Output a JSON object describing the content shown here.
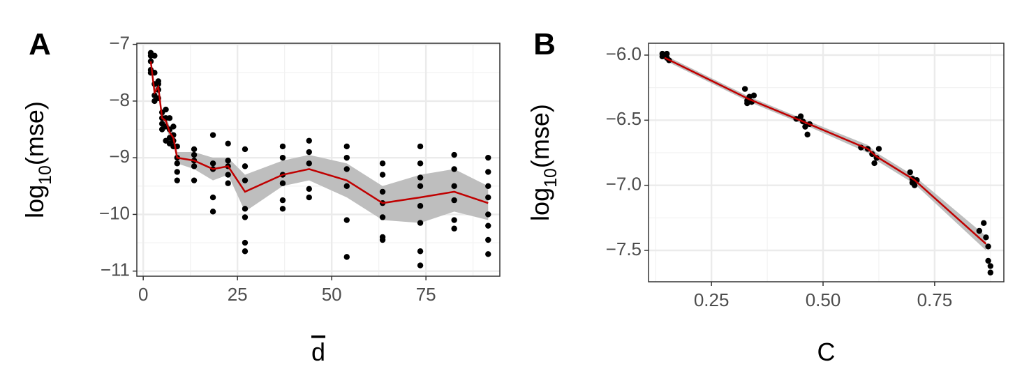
{
  "chart_data": [
    {
      "type": "scatter",
      "panel_label": "A",
      "xlabel": "d",
      "ylabel_parts": [
        "log",
        "10",
        "(mse)"
      ],
      "xlim": [
        -1.7,
        94.6
      ],
      "ylim": [
        -11.09,
        -6.98
      ],
      "xticks": [
        0,
        25,
        50,
        75
      ],
      "yticks": [
        {
          "value": -7,
          "label": "−7"
        },
        {
          "value": -8,
          "label": "−8"
        },
        {
          "value": -9,
          "label": "−9"
        },
        {
          "value": -10,
          "label": "−10"
        },
        {
          "value": -11,
          "label": "−11"
        }
      ],
      "grid": true,
      "point_color": "#000000",
      "line_color": "#c00000",
      "ribbon_color": "#bebebe",
      "points": {
        "x": [
          2,
          2,
          2,
          2,
          2,
          3,
          3,
          3,
          3,
          3,
          4,
          4,
          4,
          4,
          5,
          5,
          5,
          5,
          6,
          6,
          6,
          6,
          7,
          7,
          7,
          7,
          8,
          8,
          8,
          8,
          9,
          9,
          9,
          9,
          9,
          13.5,
          13.5,
          13.5,
          13.5,
          13.5,
          18.5,
          18.5,
          18.5,
          18.5,
          18.5,
          22.5,
          22.5,
          22.5,
          22.5,
          22.5,
          27,
          27,
          27,
          27,
          27,
          27,
          27,
          37,
          37,
          37,
          37,
          37,
          37,
          44,
          44,
          44,
          44,
          44,
          54,
          54,
          54,
          54,
          54,
          54,
          63.5,
          63.5,
          63.5,
          63.5,
          63.5,
          63.5,
          63.5,
          73.5,
          73.5,
          73.5,
          73.5,
          73.5,
          73.5,
          73.5,
          73.5,
          82.5,
          82.5,
          82.5,
          82.5,
          82.5,
          82.5,
          91.5,
          91.5,
          91.5,
          91.5,
          91.5,
          91.5,
          91.5,
          91.5
        ],
        "y": [
          -7.15,
          -7.2,
          -7.3,
          -7.45,
          -7.5,
          -7.2,
          -7.5,
          -7.7,
          -7.9,
          -8.0,
          -7.65,
          -7.7,
          -7.8,
          -7.95,
          -8.2,
          -8.3,
          -8.4,
          -8.5,
          -8.15,
          -8.3,
          -8.45,
          -8.7,
          -8.3,
          -8.5,
          -8.65,
          -8.75,
          -8.45,
          -8.6,
          -8.7,
          -8.8,
          -8.8,
          -9.0,
          -9.1,
          -9.25,
          -9.4,
          -8.85,
          -8.95,
          -9.05,
          -9.15,
          -9.4,
          -8.6,
          -9.1,
          -9.2,
          -9.7,
          -9.95,
          -8.75,
          -9.05,
          -9.15,
          -9.3,
          -9.45,
          -8.85,
          -9.15,
          -9.4,
          -9.9,
          -10.05,
          -10.5,
          -10.65,
          -8.8,
          -9.0,
          -9.3,
          -9.45,
          -9.75,
          -9.9,
          -8.7,
          -8.9,
          -9.1,
          -9.55,
          -9.7,
          -8.8,
          -9.0,
          -9.2,
          -9.5,
          -10.1,
          -10.75,
          -9.1,
          -9.3,
          -9.6,
          -9.8,
          -10.05,
          -10.4,
          -10.45,
          -8.8,
          -9.1,
          -9.35,
          -9.5,
          -9.85,
          -10.15,
          -10.65,
          -10.9,
          -8.95,
          -9.2,
          -9.5,
          -9.75,
          -10.1,
          -10.25,
          -9.0,
          -9.25,
          -9.5,
          -9.7,
          -10.0,
          -10.2,
          -10.45,
          -10.7
        ]
      },
      "line": {
        "x": [
          2,
          3,
          4,
          5,
          6,
          7,
          8,
          9,
          13.5,
          18.5,
          22.5,
          27,
          37,
          44,
          54,
          63.5,
          73.5,
          82.5,
          91.5
        ],
        "y": [
          -7.3,
          -7.85,
          -7.75,
          -8.3,
          -8.35,
          -8.55,
          -8.65,
          -9.0,
          -9.05,
          -9.2,
          -9.15,
          -9.6,
          -9.3,
          -9.2,
          -9.4,
          -9.8,
          -9.7,
          -9.6,
          -9.8
        ],
        "lower": [
          -7.4,
          -7.95,
          -7.85,
          -8.38,
          -8.45,
          -8.65,
          -8.75,
          -9.1,
          -9.2,
          -9.4,
          -9.3,
          -9.95,
          -9.5,
          -9.4,
          -9.7,
          -10.1,
          -10.15,
          -9.95,
          -10.1
        ],
        "upper": [
          -7.2,
          -7.75,
          -7.65,
          -8.22,
          -8.25,
          -8.45,
          -8.55,
          -8.9,
          -8.9,
          -9.0,
          -9.0,
          -9.3,
          -9.05,
          -8.95,
          -9.1,
          -9.5,
          -9.3,
          -9.2,
          -9.5
        ]
      }
    },
    {
      "type": "scatter",
      "panel_label": "B",
      "xlabel": "C",
      "ylabel_parts": [
        "log",
        "10",
        "(mse)"
      ],
      "xlim": [
        0.109,
        0.905
      ],
      "ylim": [
        -7.741,
        -5.909
      ],
      "xticks": [
        0.25,
        {
          "value": 0.5,
          "label": "0.50"
        },
        0.75
      ],
      "yticks": [
        {
          "value": -6,
          "label": "−6.0"
        },
        {
          "value": -6.5,
          "label": "−6.5"
        },
        {
          "value": -7,
          "label": "−7.0"
        },
        {
          "value": -7.5,
          "label": "−7.5"
        }
      ],
      "grid": true,
      "point_color": "#000000",
      "line_color": "#c00000",
      "ribbon_color": "#bebebe",
      "points": {
        "x": [
          0.14,
          0.145,
          0.15,
          0.155,
          0.14,
          0.15,
          0.325,
          0.33,
          0.335,
          0.34,
          0.345,
          0.33,
          0.44,
          0.45,
          0.455,
          0.46,
          0.465,
          0.47,
          0.585,
          0.6,
          0.61,
          0.62,
          0.625,
          0.615,
          0.695,
          0.7,
          0.705,
          0.71,
          0.7,
          0.85,
          0.86,
          0.865,
          0.87,
          0.87,
          0.875,
          0.875
        ],
        "y": [
          -5.99,
          -6.0,
          -6.02,
          -6.04,
          -6.01,
          -5.99,
          -6.26,
          -6.35,
          -6.32,
          -6.36,
          -6.31,
          -6.37,
          -6.49,
          -6.47,
          -6.51,
          -6.55,
          -6.61,
          -6.53,
          -6.71,
          -6.72,
          -6.76,
          -6.79,
          -6.72,
          -6.83,
          -6.9,
          -6.95,
          -7.0,
          -6.96,
          -6.98,
          -7.35,
          -7.29,
          -7.4,
          -7.47,
          -7.58,
          -7.62,
          -7.67
        ]
      },
      "line": {
        "x": [
          0.145,
          0.335,
          0.455,
          0.6,
          0.62,
          0.705,
          0.865
        ],
        "y": [
          -6.02,
          -6.34,
          -6.51,
          -6.72,
          -6.78,
          -6.96,
          -7.45
        ],
        "lower": [
          -6.04,
          -6.36,
          -6.53,
          -6.75,
          -6.81,
          -6.99,
          -7.5
        ],
        "upper": [
          -6.0,
          -6.32,
          -6.49,
          -6.69,
          -6.75,
          -6.93,
          -7.39
        ]
      }
    }
  ]
}
